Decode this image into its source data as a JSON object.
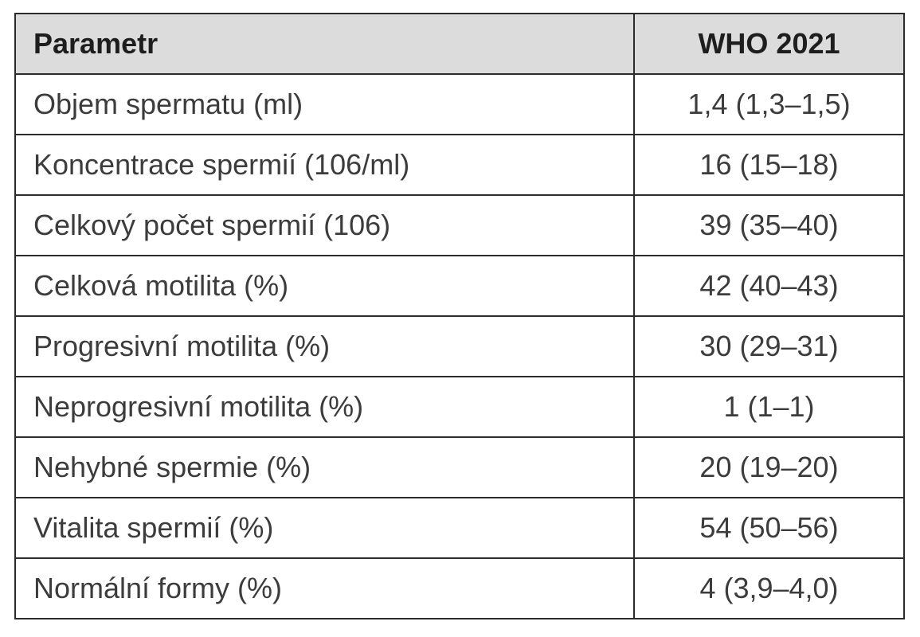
{
  "table": {
    "headers": {
      "parameter": "Parametr",
      "who": "WHO 2021"
    },
    "rows": [
      {
        "parameter": "Objem spermatu (ml)",
        "who": "1,4 (1,3–1,5)"
      },
      {
        "parameter": "Koncentrace spermií (106/ml)",
        "who": "16 (15–18)"
      },
      {
        "parameter": "Celkový počet spermií (106)",
        "who": "39 (35–40)"
      },
      {
        "parameter": "Celková motilita (%)",
        "who": "42 (40–43)"
      },
      {
        "parameter": "Progresivní motilita (%)",
        "who": "30 (29–31)"
      },
      {
        "parameter": "Neprogresivní motilita (%)",
        "who": "1 (1–1)"
      },
      {
        "parameter": "Nehybné spermie (%)",
        "who": "20 (19–20)"
      },
      {
        "parameter": "Vitalita spermií (%)",
        "who": "54 (50–56)"
      },
      {
        "parameter": "Normální formy (%)",
        "who": "4 (3,9–4,0)"
      }
    ]
  },
  "colors": {
    "header_background": "#dcdcdc",
    "border": "#2b2b2b",
    "text": "#3c3c3c"
  }
}
